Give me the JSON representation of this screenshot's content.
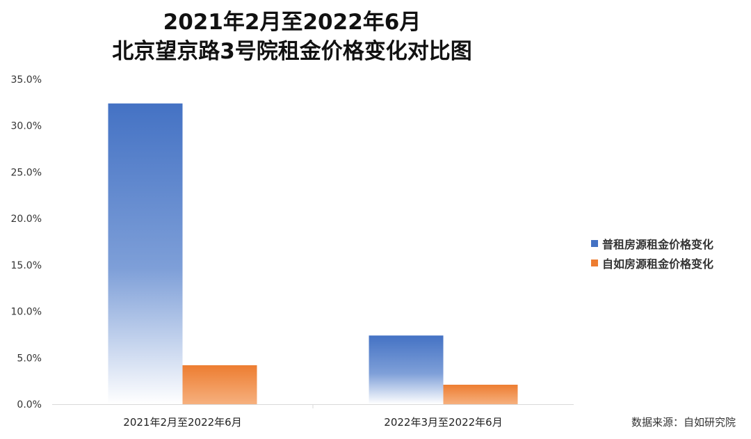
{
  "title_line1": "2021年2月至2022年6月",
  "title_line2": "北京望京路3号院租金价格变化对比图",
  "source": "数据来源：自如研究院",
  "colors": {
    "series1": "#4472c4",
    "series2": "#ed7d31"
  },
  "chart_data": {
    "type": "bar",
    "title": "2021年2月至2022年6月 北京望京路3号院租金价格变化对比图",
    "categories": [
      "2021年2月至2022年6月",
      "2022年3月至2022年6月"
    ],
    "series": [
      {
        "name": "普租房源租金价格变化",
        "values": [
          32.4,
          7.4
        ]
      },
      {
        "name": "自如房源租金价格变化",
        "values": [
          4.2,
          2.1
        ]
      }
    ],
    "ylim": [
      0,
      35
    ],
    "yticks": [
      "0.0%",
      "5.0%",
      "10.0%",
      "15.0%",
      "20.0%",
      "25.0%",
      "30.0%",
      "35.0%"
    ],
    "unit": "%",
    "legend_position": "right",
    "grid": false
  }
}
